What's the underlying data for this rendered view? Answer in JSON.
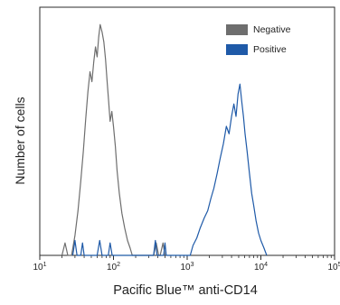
{
  "chart_data": {
    "type": "line",
    "title": "",
    "xlabel": "Pacific Blue™ anti-CD14",
    "ylabel": "Number of cells",
    "x_scale": "log",
    "xlim": [
      10,
      100000
    ],
    "x_ticks": [
      {
        "value": 10,
        "base": "10",
        "exp": "1"
      },
      {
        "value": 100,
        "base": "10",
        "exp": "2"
      },
      {
        "value": 1000,
        "base": "10",
        "exp": "3"
      },
      {
        "value": 10000,
        "base": "10",
        "exp": "4"
      },
      {
        "value": 100000,
        "base": "10",
        "exp": "5"
      }
    ],
    "ylim": [
      0,
      100
    ],
    "grid": false,
    "legend_position": "top-right",
    "series": [
      {
        "name": "Negative",
        "color": "#6e6e6e",
        "points": [
          [
            20,
            0
          ],
          [
            22,
            5
          ],
          [
            24,
            0
          ],
          [
            27,
            0
          ],
          [
            30,
            8
          ],
          [
            33,
            18
          ],
          [
            36,
            30
          ],
          [
            39,
            42
          ],
          [
            42,
            55
          ],
          [
            45,
            66
          ],
          [
            48,
            74
          ],
          [
            51,
            70
          ],
          [
            54,
            78
          ],
          [
            57,
            84
          ],
          [
            60,
            80
          ],
          [
            63,
            88
          ],
          [
            66,
            93
          ],
          [
            70,
            90
          ],
          [
            74,
            86
          ],
          [
            78,
            79
          ],
          [
            82,
            70
          ],
          [
            86,
            62
          ],
          [
            90,
            54
          ],
          [
            95,
            58
          ],
          [
            100,
            52
          ],
          [
            106,
            44
          ],
          [
            112,
            34
          ],
          [
            120,
            25
          ],
          [
            130,
            17
          ],
          [
            142,
            11
          ],
          [
            155,
            6
          ],
          [
            168,
            3
          ],
          [
            180,
            0
          ],
          [
            200,
            0
          ],
          [
            350,
            0
          ],
          [
            380,
            5
          ],
          [
            410,
            0
          ],
          [
            430,
            0
          ],
          [
            470,
            5
          ],
          [
            500,
            0
          ]
        ]
      },
      {
        "name": "Positive",
        "color": "#1f5aa8",
        "points": [
          [
            28,
            0
          ],
          [
            30,
            6
          ],
          [
            32,
            0
          ],
          [
            36,
            0
          ],
          [
            38,
            5
          ],
          [
            40,
            0
          ],
          [
            60,
            0
          ],
          [
            65,
            6
          ],
          [
            70,
            0
          ],
          [
            85,
            0
          ],
          [
            90,
            5
          ],
          [
            96,
            0
          ],
          [
            350,
            0
          ],
          [
            370,
            6
          ],
          [
            390,
            0
          ],
          [
            480,
            0
          ],
          [
            500,
            5
          ],
          [
            520,
            0
          ],
          [
            1100,
            0
          ],
          [
            1200,
            4
          ],
          [
            1350,
            7
          ],
          [
            1500,
            11
          ],
          [
            1700,
            15
          ],
          [
            1900,
            18
          ],
          [
            2100,
            23
          ],
          [
            2300,
            27
          ],
          [
            2550,
            33
          ],
          [
            2800,
            39
          ],
          [
            3100,
            45
          ],
          [
            3400,
            52
          ],
          [
            3700,
            49
          ],
          [
            4000,
            56
          ],
          [
            4300,
            61
          ],
          [
            4600,
            56
          ],
          [
            4900,
            65
          ],
          [
            5200,
            69
          ],
          [
            5500,
            62
          ],
          [
            5800,
            56
          ],
          [
            6100,
            49
          ],
          [
            6500,
            42
          ],
          [
            7000,
            33
          ],
          [
            7500,
            25
          ],
          [
            8000,
            20
          ],
          [
            8600,
            14
          ],
          [
            9300,
            9
          ],
          [
            10000,
            6
          ],
          [
            11000,
            3
          ],
          [
            12000,
            0
          ]
        ]
      }
    ]
  }
}
